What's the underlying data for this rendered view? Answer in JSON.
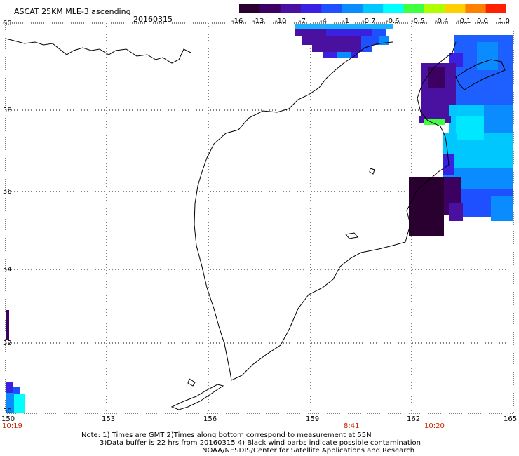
{
  "title": "ASCAT 25KM MLE-3 ascending",
  "date": "20160315",
  "colorbar": {
    "labels": [
      "-16",
      "-13",
      "-10",
      "-7",
      "-4",
      "-1",
      "-0.7",
      "-0.6",
      "-0.5",
      "-0.4",
      "-0.1",
      "0.0",
      "1.0"
    ],
    "colors": [
      "#2a0030",
      "#3c0060",
      "#4a10a0",
      "#3a20e0",
      "#1e50ff",
      "#0a8cff",
      "#00c8ff",
      "#00ffff",
      "#40ff40",
      "#b0ff00",
      "#ffd000",
      "#ff8000",
      "#ff2000"
    ]
  },
  "map": {
    "lat_labels": [
      "60",
      "58",
      "56",
      "54",
      "52",
      "50"
    ],
    "lon_labels": [
      "150",
      "153",
      "156",
      "159",
      "162",
      "165"
    ],
    "time_labels": [
      "10:19",
      "8:41",
      "10:20"
    ]
  },
  "notes": [
    "Note: 1) Times are GMT 2)Times along bottom correspond to measurement at 55N",
    "3)Data buffer is 22 hrs from 20160315 4) Black wind barbs indicate possible contamination",
    "NOAA/NESDIS/Center for Satellite Applications and Research"
  ]
}
